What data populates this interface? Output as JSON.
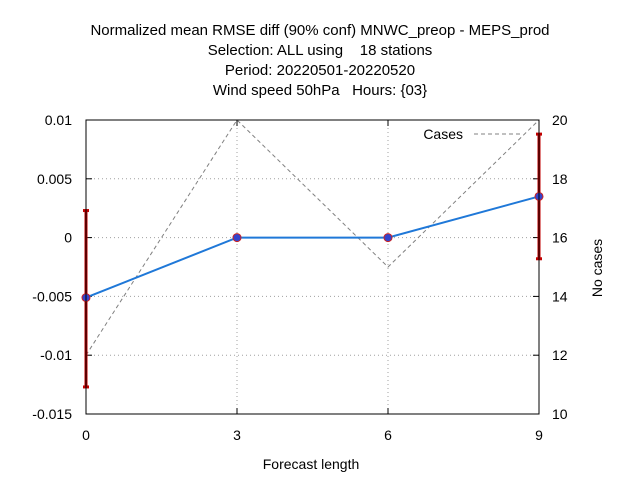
{
  "chart_data": {
    "type": "line",
    "title_lines": [
      "Normalized mean RMSE diff (90% conf) MNWC_preop - MEPS_prod",
      "Selection: ALL using    18 stations",
      "Period: 20220501-20220520",
      "Wind speed 50hPa   Hours: {03}"
    ],
    "xlabel": "Forecast length",
    "ylabel": "",
    "y2label": "No cases",
    "x": [
      0,
      3,
      6,
      9
    ],
    "xlim": [
      0,
      9
    ],
    "ylim": [
      -0.015,
      0.01
    ],
    "y2lim": [
      10,
      20
    ],
    "x_ticks": [
      "0",
      "3",
      "6",
      "9"
    ],
    "y_ticks": [
      "0.01",
      "0.005",
      "0",
      "-0.005",
      "-0.01",
      "-0.015"
    ],
    "y_tick_values": [
      0.01,
      0.005,
      0,
      -0.005,
      -0.01,
      -0.015
    ],
    "y2_ticks": [
      "20",
      "18",
      "16",
      "14",
      "12",
      "10"
    ],
    "y2_tick_values": [
      20,
      18,
      16,
      14,
      12,
      10
    ],
    "grid": true,
    "legend_position": "top-right",
    "series": [
      {
        "axis": "y",
        "values": [
          -0.0051,
          0.0,
          0.0,
          0.0035
        ],
        "color": "#1f78d8",
        "marker_color": "#3344cc"
      },
      {
        "name": "Cases",
        "axis": "y2",
        "values": [
          12,
          20,
          15,
          20
        ],
        "color": "#808080",
        "dashed": true
      }
    ],
    "error_bars": [
      {
        "x": 0,
        "low": -0.0127,
        "high": 0.0023
      },
      {
        "x": 9,
        "low": -0.0018,
        "high": 0.0088
      }
    ],
    "error_bar_color": "#c00000"
  }
}
